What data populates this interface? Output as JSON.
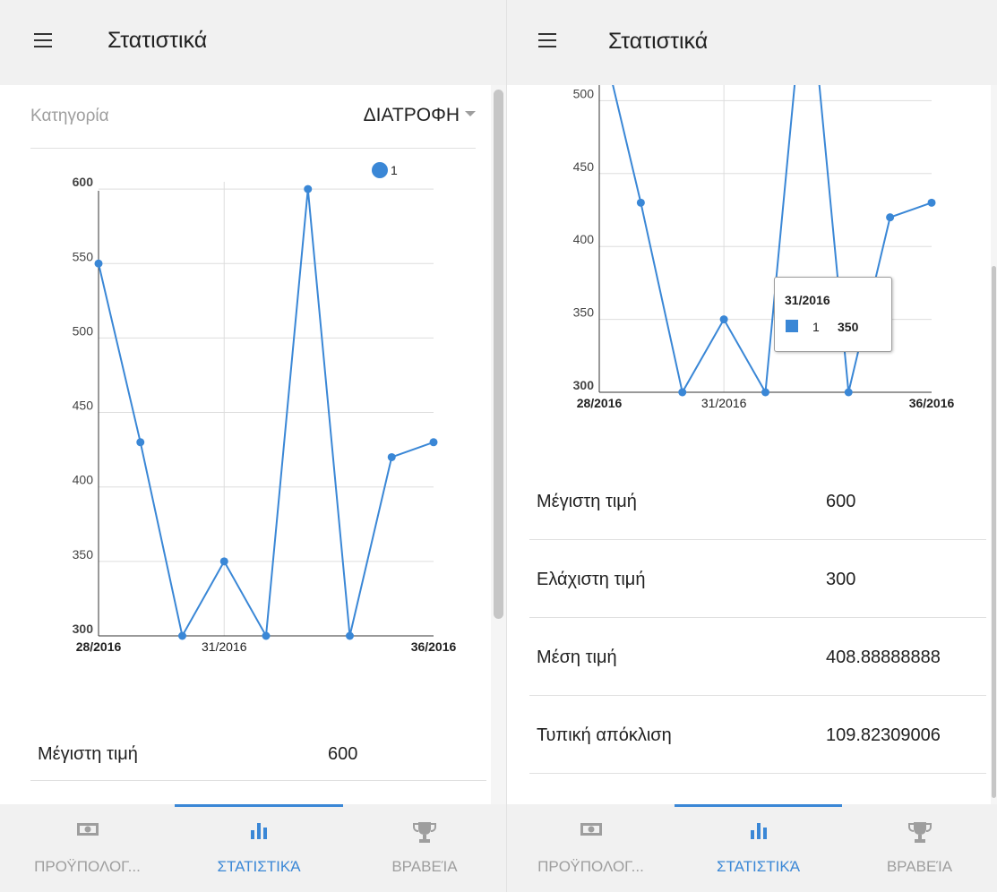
{
  "colors": {
    "accent": "#3a87d6",
    "series": "#3a87d6",
    "appbar_bg": "#f1f1f1",
    "nav_bg": "#f1f1f1",
    "inactive": "#9e9e9e",
    "grid": "#dddddd"
  },
  "left": {
    "appbar": {
      "title": "Στατιστικά",
      "menu_icon": "menu-icon"
    },
    "category": {
      "label": "Κατηγορία",
      "value": "ΔΙΑΤΡΟΦΗ"
    },
    "stats": [
      {
        "label": "Μέγιστη τιμή",
        "value": "600"
      }
    ],
    "nav": [
      {
        "label": "ΠΡΟΫΠΟΛΟΓ...",
        "icon": "money-icon",
        "active": false
      },
      {
        "label": "ΣΤΑΤΙΣΤΙΚΆ",
        "icon": "bar-chart-icon",
        "active": true
      },
      {
        "label": "ΒΡΑΒΕΊΑ",
        "icon": "trophy-icon",
        "active": false
      }
    ]
  },
  "right": {
    "appbar": {
      "title": "Στατιστικά",
      "menu_icon": "menu-icon"
    },
    "tooltip": {
      "title": "31/2016",
      "series": "1",
      "value": "350"
    },
    "stats": [
      {
        "label": "Μέγιστη τιμή",
        "value": "600"
      },
      {
        "label": "Ελάχιστη τιμή",
        "value": "300"
      },
      {
        "label": "Μέση τιμή",
        "value": "408.88888888"
      },
      {
        "label": "Τυπική απόκλιση",
        "value": "109.82309006"
      }
    ],
    "nav": [
      {
        "label": "ΠΡΟΫΠΟΛΟΓ...",
        "icon": "money-icon",
        "active": false
      },
      {
        "label": "ΣΤΑΤΙΣΤΙΚΆ",
        "icon": "bar-chart-icon",
        "active": true
      },
      {
        "label": "ΒΡΑΒΕΊΑ",
        "icon": "trophy-icon",
        "active": false
      }
    ]
  },
  "chart_data": [
    {
      "type": "line",
      "legend": [
        "1"
      ],
      "legend_position": "top-right",
      "x": [
        28,
        29,
        30,
        31,
        32,
        33,
        34,
        35,
        36
      ],
      "series": [
        {
          "name": "1",
          "values": [
            550,
            430,
            300,
            350,
            300,
            600,
            300,
            420,
            430
          ]
        }
      ],
      "y_ticks": [
        "600",
        "550",
        "500",
        "450",
        "400",
        "350",
        "300"
      ],
      "x_tick_labels": [
        {
          "x": 28,
          "label": "28/2016",
          "bold": true
        },
        {
          "x": 31,
          "label": "31/2016",
          "bold": false
        },
        {
          "x": 36,
          "label": "36/2016",
          "bold": true
        }
      ],
      "ylim": [
        300,
        600
      ],
      "xlim": [
        28,
        36
      ],
      "grid": true
    },
    {
      "type": "line",
      "x": [
        28,
        29,
        30,
        31,
        32,
        33,
        34,
        35,
        36
      ],
      "series": [
        {
          "name": "1",
          "values": [
            550,
            430,
            300,
            350,
            300,
            600,
            300,
            420,
            430
          ]
        }
      ],
      "y_ticks": [
        "500",
        "450",
        "400",
        "350",
        "300"
      ],
      "x_tick_labels": [
        {
          "x": 28,
          "label": "28/2016",
          "bold": true
        },
        {
          "x": 31,
          "label": "31/2016",
          "bold": false
        },
        {
          "x": 36,
          "label": "36/2016",
          "bold": true
        }
      ],
      "ylim": [
        300,
        600
      ],
      "xlim": [
        28,
        36
      ],
      "grid": true
    }
  ]
}
